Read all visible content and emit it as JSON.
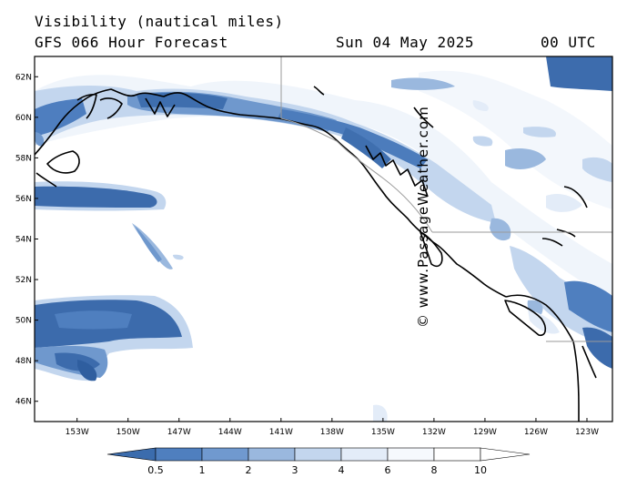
{
  "header": {
    "title": "Visibility (nautical miles)",
    "subtitle": "GFS 066 Hour Forecast",
    "date": "Sun 04 May 2025",
    "time": "00 UTC"
  },
  "watermark": "© www.PassageWeather.com",
  "map": {
    "region": "Gulf of Alaska / Pacific Northwest",
    "lat_labels": [
      "62N",
      "60N",
      "58N",
      "56N",
      "54N",
      "52N",
      "50N",
      "48N",
      "46N"
    ],
    "lon_labels": [
      "153W",
      "150W",
      "147W",
      "144W",
      "141W",
      "138W",
      "135W",
      "132W",
      "129W",
      "126W",
      "123W"
    ],
    "lat_range": [
      45,
      63
    ],
    "lon_range": [
      -155.5,
      -121.5
    ]
  },
  "legend": {
    "ticks": [
      "0.5",
      "1",
      "2",
      "3",
      "4",
      "6",
      "8",
      "10"
    ],
    "colors": [
      "#3b6cad",
      "#4f7fbf",
      "#7099cf",
      "#9ab8de",
      "#c3d6ee",
      "#e3ecf8",
      "#f6f9fd",
      "#ffffff"
    ]
  }
}
